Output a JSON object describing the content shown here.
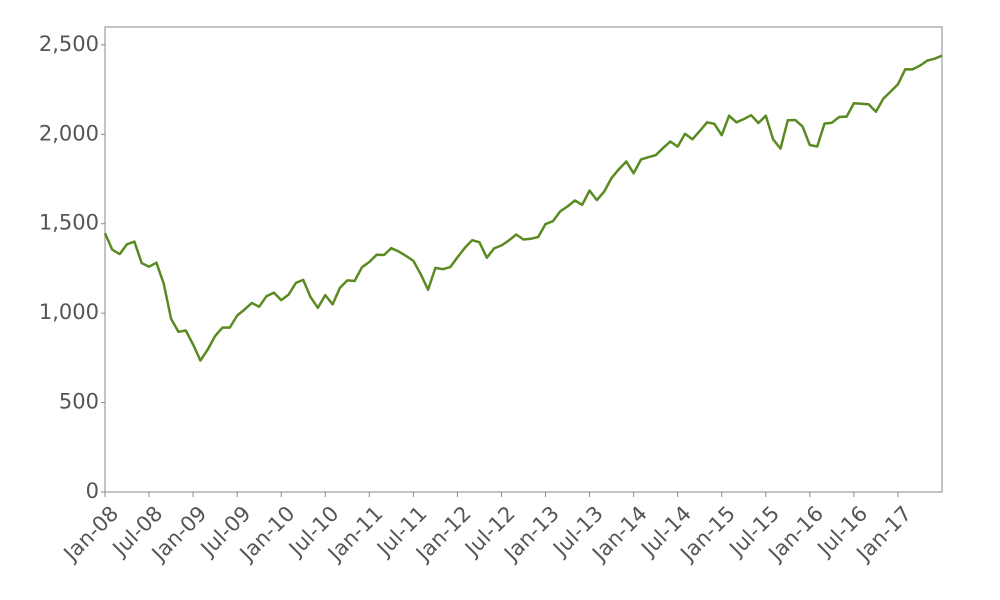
{
  "chart_data": {
    "type": "line",
    "x": [
      "2008-01",
      "2008-02",
      "2008-03",
      "2008-04",
      "2008-05",
      "2008-06",
      "2008-07",
      "2008-08",
      "2008-09",
      "2008-10",
      "2008-11",
      "2008-12",
      "2009-01",
      "2009-02",
      "2009-03",
      "2009-04",
      "2009-05",
      "2009-06",
      "2009-07",
      "2009-08",
      "2009-09",
      "2009-10",
      "2009-11",
      "2009-12",
      "2010-01",
      "2010-02",
      "2010-03",
      "2010-04",
      "2010-05",
      "2010-06",
      "2010-07",
      "2010-08",
      "2010-09",
      "2010-10",
      "2010-11",
      "2010-12",
      "2011-01",
      "2011-02",
      "2011-03",
      "2011-04",
      "2011-05",
      "2011-06",
      "2011-07",
      "2011-08",
      "2011-09",
      "2011-10",
      "2011-11",
      "2011-12",
      "2012-01",
      "2012-02",
      "2012-03",
      "2012-04",
      "2012-05",
      "2012-06",
      "2012-07",
      "2012-08",
      "2012-09",
      "2012-10",
      "2012-11",
      "2012-12",
      "2013-01",
      "2013-02",
      "2013-03",
      "2013-04",
      "2013-05",
      "2013-06",
      "2013-07",
      "2013-08",
      "2013-09",
      "2013-10",
      "2013-11",
      "2013-12",
      "2014-01",
      "2014-02",
      "2014-03",
      "2014-04",
      "2014-05",
      "2014-06",
      "2014-07",
      "2014-08",
      "2014-09",
      "2014-10",
      "2014-11",
      "2014-12",
      "2015-01",
      "2015-02",
      "2015-03",
      "2015-04",
      "2015-05",
      "2015-06",
      "2015-07",
      "2015-08",
      "2015-09",
      "2015-10",
      "2015-11",
      "2015-12",
      "2016-01",
      "2016-02",
      "2016-03",
      "2016-04",
      "2016-05",
      "2016-06",
      "2016-07",
      "2016-08",
      "2016-09",
      "2016-10",
      "2016-11",
      "2016-12",
      "2017-01",
      "2017-02",
      "2017-03",
      "2017-04",
      "2017-05",
      "2017-06",
      "2017-07"
    ],
    "values": [
      1447,
      1355,
      1330,
      1385,
      1400,
      1280,
      1260,
      1282,
      1166,
      968,
      896,
      903,
      825,
      735,
      797,
      872,
      919,
      919,
      987,
      1020,
      1057,
      1036,
      1095,
      1115,
      1073,
      1104,
      1169,
      1186,
      1089,
      1030,
      1101,
      1049,
      1141,
      1183,
      1180,
      1257,
      1286,
      1327,
      1325,
      1363,
      1345,
      1320,
      1292,
      1218,
      1131,
      1253,
      1246,
      1257,
      1312,
      1365,
      1408,
      1397,
      1310,
      1362,
      1379,
      1406,
      1440,
      1412,
      1416,
      1426,
      1498,
      1514,
      1569,
      1597,
      1630,
      1606,
      1685,
      1632,
      1681,
      1756,
      1805,
      1848,
      1782,
      1859,
      1872,
      1883,
      1923,
      1960,
      1931,
      2003,
      1972,
      2018,
      2067,
      2058,
      1995,
      2104,
      2067,
      2085,
      2107,
      2063,
      2104,
      1972,
      1920,
      2079,
      2080,
      2044,
      1940,
      1932,
      2060,
      2065,
      2097,
      2099,
      2174,
      2171,
      2168,
      2126,
      2199,
      2239,
      2279,
      2364,
      2363,
      2384,
      2412,
      2423,
      2440
    ],
    "color": "#5a8a22",
    "xlim": [
      "2008-01",
      "2017-07"
    ],
    "xticks": [
      {
        "value": "2008-01",
        "label": "Jan-08"
      },
      {
        "value": "2008-07",
        "label": "Jul-08"
      },
      {
        "value": "2009-01",
        "label": "Jan-09"
      },
      {
        "value": "2009-07",
        "label": "Jul-09"
      },
      {
        "value": "2010-01",
        "label": "Jan-10"
      },
      {
        "value": "2010-07",
        "label": "Jul-10"
      },
      {
        "value": "2011-01",
        "label": "Jan-11"
      },
      {
        "value": "2011-07",
        "label": "Jul-11"
      },
      {
        "value": "2012-01",
        "label": "Jan-12"
      },
      {
        "value": "2012-07",
        "label": "Jul-12"
      },
      {
        "value": "2013-01",
        "label": "Jan-13"
      },
      {
        "value": "2013-07",
        "label": "Jul-13"
      },
      {
        "value": "2014-01",
        "label": "Jan-14"
      },
      {
        "value": "2014-07",
        "label": "Jul-14"
      },
      {
        "value": "2015-01",
        "label": "Jan-15"
      },
      {
        "value": "2015-07",
        "label": "Jul-15"
      },
      {
        "value": "2016-01",
        "label": "Jan-16"
      },
      {
        "value": "2016-07",
        "label": "Jul-16"
      },
      {
        "value": "2017-01",
        "label": "Jan-17"
      }
    ],
    "ylim": [
      0,
      2600
    ],
    "yticks": [
      0,
      500,
      {
        "value": 1000,
        "label": "1,000"
      },
      {
        "value": 1500,
        "label": "1,500"
      },
      {
        "value": 2000,
        "label": "2,000"
      },
      {
        "value": 2500,
        "label": "2,500"
      }
    ]
  }
}
